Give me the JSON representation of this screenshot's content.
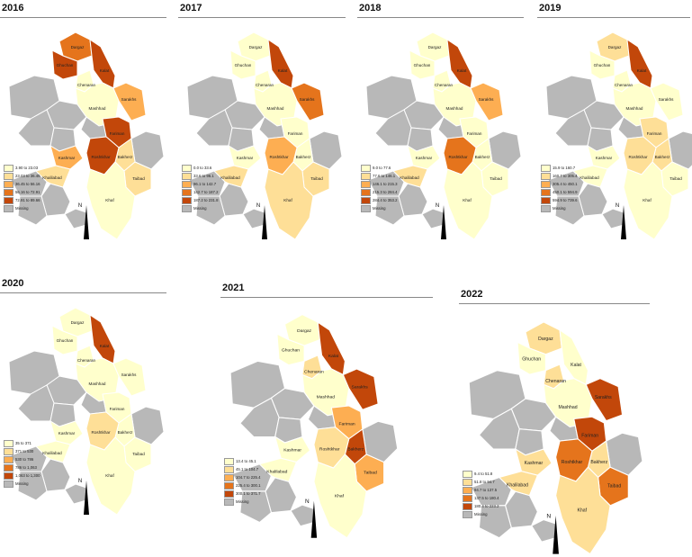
{
  "colors": {
    "c1": "#ffffcc",
    "c2": "#fedf97",
    "c3": "#fdae52",
    "c4": "#e5741c",
    "c5": "#c2470a",
    "missing": "#b8b8b8"
  },
  "north_label": "N",
  "panels": [
    {
      "year": "2016",
      "legend": [
        "3.90 to 23.03",
        "23.03 to 36.45",
        "36.45 to 56.16",
        "56.16 to 72.91",
        "72.91 to 89.66",
        "Missing"
      ],
      "labels": {
        "Dargaz": "Dargaz",
        "Ghuchan": "Ghuchan",
        "Kalat": "Kalat",
        "Chenaran": "Chenaran",
        "Mashhad": "Mashhad",
        "Sarakhs": "Sarakhs",
        "Fariman": "Fariman",
        "Kashmar": "Kashmar",
        "Khalilabad": "Khalilabad",
        "Bakherz": "Bakherz",
        "Roshtkhar": "Roshtkhar",
        "Taibad": "Taibad",
        "Khaf": "Khaf"
      },
      "fills": {
        "Dargaz": "c4",
        "Ghuchan": "c5",
        "Kalat": "c5",
        "Chenaran": "c1",
        "Mashhad": "c1",
        "Sarakhs": "c3",
        "Fariman": "c5",
        "Kashmar": "c3",
        "Khalilabad": "c2",
        "Bakherz": "c2",
        "Roshtkhar": "c5",
        "Taibad": "c2",
        "Khaf": "c1"
      }
    },
    {
      "year": "2017",
      "legend": [
        "0.0 to 33.6",
        "33.6 to 96.1",
        "96.1 to 142.7",
        "142.7 to 187.2",
        "187.2 to 231.8",
        "Missing"
      ],
      "labels": {
        "Dargaz": "Dargaz",
        "Ghuchan": "Ghuchan",
        "Kalat": "Kalat",
        "Chenaran": "Chenaran",
        "Mashhad": "Mashhad",
        "Sarakhs": "Sarakhs",
        "Fariman": "Fariman",
        "Kashmar": "Kashmar",
        "Khalilabad": "Khalilabad",
        "Bakherz": "Bakherz",
        "Roshtkhar": "Roshtkhar",
        "Taibad": "Taibad",
        "Khaf": "Khaf"
      },
      "fills": {
        "Dargaz": "c1",
        "Ghuchan": "c1",
        "Kalat": "c5",
        "Chenaran": "c1",
        "Mashhad": "c1",
        "Sarakhs": "c4",
        "Fariman": "c1",
        "Kashmar": "c1",
        "Khalilabad": "c2",
        "Bakherz": "c1",
        "Roshtkhar": "c3",
        "Taibad": "c2",
        "Khaf": "c2"
      }
    },
    {
      "year": "2018",
      "legend": [
        "9.0 to 77.6",
        "77.6 to 146.1",
        "146.1 to 215.3",
        "215.3 to 284.4",
        "284.4 to 353.2",
        "Missing"
      ],
      "labels": {
        "Dargaz": "Dargaz",
        "Ghuchan": "Ghuchan",
        "Kalat": "Kalat",
        "Chenaran": "Chenaran",
        "Mashhad": "Mashhad",
        "Sarakhs": "Sarakhs",
        "Fariman": "Fariman",
        "Kashmar": "Kashmar",
        "Khalilabad": "Khalilabad",
        "Bakherz": "Bakherz",
        "Roshtkhar": "Roshtkhar",
        "Taibad": "Taibad",
        "Khaf": "Khaf"
      },
      "fills": {
        "Dargaz": "c1",
        "Ghuchan": "c1",
        "Kalat": "c5",
        "Chenaran": "c1",
        "Mashhad": "c1",
        "Sarakhs": "c3",
        "Fariman": "c1",
        "Kashmar": "c1",
        "Khalilabad": "c2",
        "Bakherz": "c1",
        "Roshtkhar": "c4",
        "Taibad": "c1",
        "Khaf": "c1"
      }
    },
    {
      "year": "2019",
      "legend": [
        "15.9 to 160.7",
        "160.7 to 305.4",
        "305.4 to 450.1",
        "450.1 to 594.9",
        "594.9 to 739.6",
        "Missing"
      ],
      "labels": {
        "Dargaz": "Dargaz",
        "Ghuchan": "Ghuchan",
        "Kalat": "Kalat",
        "Chenaran": "Chenaran",
        "Mashhad": "Mashhad",
        "Sarakhs": "Sarakhs",
        "Fariman": "Fariman",
        "Kashmar": "Kashmar",
        "Khalilabad": "Khalilabad",
        "Bakherz": "Bakherz",
        "Roshtkhar": "Roshtkhar",
        "Taibad": "Taibad",
        "Khaf": "Khaf"
      },
      "fills": {
        "Dargaz": "c2",
        "Ghuchan": "c1",
        "Kalat": "c5",
        "Chenaran": "c1",
        "Mashhad": "c1",
        "Sarakhs": "c1",
        "Fariman": "c2",
        "Kashmar": "c1",
        "Khalilabad": "c1",
        "Bakherz": "c2",
        "Roshtkhar": "c2",
        "Taibad": "c1",
        "Khaf": "c1"
      }
    },
    {
      "year": "2020",
      "legend": [
        "35 to 371",
        "371 to 530",
        "530 to 786",
        "786 to 1,063",
        "1,063 to 1,300",
        "Missing"
      ],
      "labels": {
        "Dargaz": "Dargaz",
        "Ghuchan": "Ghuchan",
        "Kalat": "Kalat",
        "Chenaran": "Chenaran",
        "Mashhad": "Mashhad",
        "Sarakhs": "Sarakhs",
        "Fariman": "Fariman",
        "Kashmar": "Kashmar",
        "Khalilabad": "Khalilabad",
        "Bakherz": "Bakherz",
        "Roshtkhar": "Roshtkhar",
        "Taibad": "Taibad",
        "Khaf": "Khaf"
      },
      "fills": {
        "Dargaz": "c1",
        "Ghuchan": "c1",
        "Kalat": "c5",
        "Chenaran": "c1",
        "Mashhad": "c1",
        "Sarakhs": "c1",
        "Fariman": "c1",
        "Kashmar": "c1",
        "Khalilabad": "c1",
        "Bakherz": "c1",
        "Roshtkhar": "c2",
        "Taibad": "c1",
        "Khaf": "c1"
      }
    },
    {
      "year": "2021",
      "legend": [
        "13.4 to 45.1",
        "45.1 to 104.7",
        "104.7 to 225.4",
        "225.4 to 300.1",
        "300.1 to 371.7",
        "Missing"
      ],
      "labels": {
        "Dargaz": "Dargaz",
        "Ghuchan": "Ghuchan",
        "Kalat": "Kalat",
        "Chenaran": "Chenaran",
        "Mashhad": "Mashhad",
        "Sarakhs": "Sarakhs",
        "Fariman": "Fariman",
        "Kashmar": "Kashmar",
        "Khalilabad": "Khalilabad",
        "Bakherz": "Bakherz",
        "Roshtkhar": "Roshtkhar",
        "Taibad": "Taibad",
        "Khaf": "Khaf"
      },
      "fills": {
        "Dargaz": "c1",
        "Ghuchan": "c1",
        "Kalat": "c5",
        "Chenaran": "c2",
        "Mashhad": "c1",
        "Sarakhs": "c5",
        "Fariman": "c3",
        "Kashmar": "c1",
        "Khalilabad": "c1",
        "Bakherz": "c5",
        "Roshtkhar": "c2",
        "Taibad": "c3",
        "Khaf": "c1"
      }
    },
    {
      "year": "2022",
      "legend": [
        "9.4 to 51.8",
        "51.8 to 94.7",
        "94.7 to 137.5",
        "137.5 to 180.4",
        "180.4 to 223.2",
        "Missing"
      ],
      "labels": {
        "Dargaz": "Dargaz",
        "Ghuchan": "Ghuchan",
        "Kalat": "Kalat",
        "Chenaran": "Chenaran",
        "Mashhad": "Mashhad",
        "Sarakhs": "Sarakhs",
        "Fariman": "Fariman",
        "Kashmar": "Kashmar",
        "Khalilabad": "Khalilabad",
        "Bakherz": "Bakherz",
        "Roshtkhar": "Roshtkhar",
        "Taibad": "Taibad",
        "Khaf": "Khaf"
      },
      "fills": {
        "Dargaz": "c2",
        "Ghuchan": "c1",
        "Kalat": "c1",
        "Chenaran": "c2",
        "Mashhad": "c1",
        "Sarakhs": "c5",
        "Fariman": "c5",
        "Kashmar": "c2",
        "Khalilabad": "c2",
        "Bakherz": "c2",
        "Roshtkhar": "c4",
        "Taibad": "c4",
        "Khaf": "c2"
      }
    }
  ]
}
